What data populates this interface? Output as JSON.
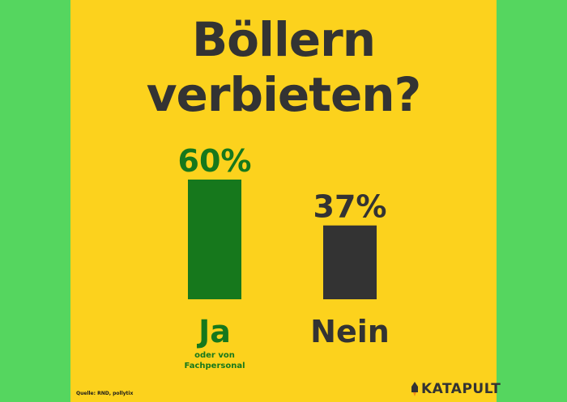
{
  "title_lines": [
    "Böllern",
    "verbieten?"
  ],
  "source": "Quelle: RND, pollytix",
  "brand": "KATAPULT",
  "colors": {
    "background": "#fcd21d",
    "border": "#55d65f",
    "ja": "#16781c",
    "nein": "#333333"
  },
  "chart_data": {
    "type": "bar",
    "title": "Böllern verbieten?",
    "categories": [
      "Ja",
      "Nein"
    ],
    "category_notes": [
      "oder von Fachpersonal",
      ""
    ],
    "values": [
      60,
      37
    ],
    "value_labels": [
      "60%",
      "37%"
    ],
    "unit": "%",
    "ylim": [
      0,
      100
    ],
    "colors": [
      "#16781c",
      "#333333"
    ],
    "grid": false,
    "legend": "none"
  }
}
